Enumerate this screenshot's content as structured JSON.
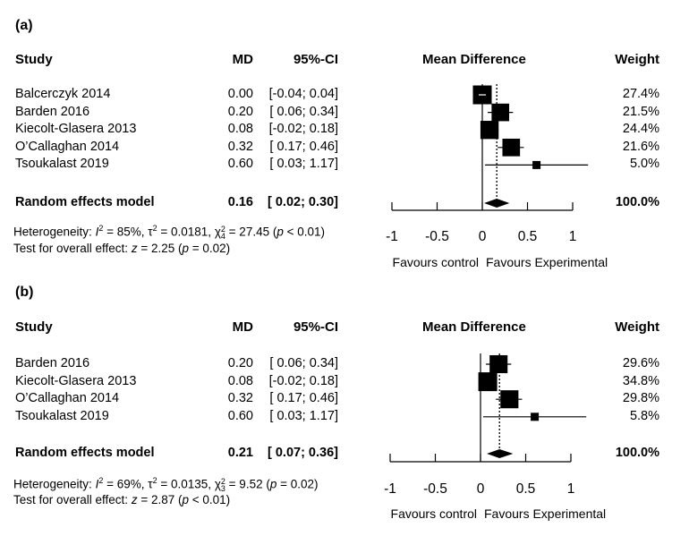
{
  "chart_data": [
    {
      "type": "forest",
      "panel_label": "(a)",
      "headers": {
        "study": "Study",
        "md": "MD",
        "ci": "95%-CI",
        "plot": "Mean Difference",
        "weight": "Weight"
      },
      "studies": [
        {
          "name": "Balcerczyk 2014",
          "md": 0.0,
          "lo": -0.04,
          "hi": 0.04,
          "md_text": "0.00",
          "ci_text": "[-0.04; 0.04]",
          "weight": 27.4,
          "weight_text": "27.4%"
        },
        {
          "name": "Barden 2016",
          "md": 0.2,
          "lo": 0.06,
          "hi": 0.34,
          "md_text": "0.20",
          "ci_text": "[ 0.06; 0.34]",
          "weight": 21.5,
          "weight_text": "21.5%"
        },
        {
          "name": "Kiecolt-Glasera 2013",
          "md": 0.08,
          "lo": -0.02,
          "hi": 0.18,
          "md_text": "0.08",
          "ci_text": "[-0.02; 0.18]",
          "weight": 24.4,
          "weight_text": "24.4%"
        },
        {
          "name": "O’Callaghan 2014",
          "md": 0.32,
          "lo": 0.17,
          "hi": 0.46,
          "md_text": "0.32",
          "ci_text": "[ 0.17; 0.46]",
          "weight": 21.6,
          "weight_text": "21.6%"
        },
        {
          "name": "Tsoukalast 2019",
          "md": 0.6,
          "lo": 0.03,
          "hi": 1.17,
          "md_text": "0.60",
          "ci_text": "[ 0.03; 1.17]",
          "weight": 5.0,
          "weight_text": "5.0%"
        }
      ],
      "pooled": {
        "name": "Random effects model",
        "md": 0.16,
        "lo": 0.02,
        "hi": 0.3,
        "md_text": "0.16",
        "ci_text": "[ 0.02; 0.30]",
        "weight_text": "100.0%"
      },
      "heterogeneity": {
        "prefix": "Heterogeneity: ",
        "i2_label": "I",
        "i2_value": " = 85%, ",
        "tau_label": "τ",
        "tau_value": " = 0.0181, ",
        "chi_label": "χ",
        "chi_df": "4",
        "chi_value": " = 27.45 (",
        "p_label": "p",
        "p_value": " < 0.01)"
      },
      "overall": {
        "prefix": "Test for overall effect: ",
        "z_label": "z",
        "z_value": " = 2.25 (",
        "p_label": "p",
        "p_value": " = 0.02)"
      },
      "x_ticks": [
        -1,
        -0.5,
        0,
        0.5,
        1
      ],
      "x_tick_labels": [
        "-1",
        "-0.5",
        "0",
        "0.5",
        "1"
      ],
      "xlim": [
        -1,
        1
      ],
      "xlabel_left": "Favours control",
      "xlabel_right": "Favours Experimental"
    },
    {
      "type": "forest",
      "panel_label": "(b)",
      "headers": {
        "study": "Study",
        "md": "MD",
        "ci": "95%-CI",
        "plot": "Mean Difference",
        "weight": "Weight"
      },
      "studies": [
        {
          "name": "Barden 2016",
          "md": 0.2,
          "lo": 0.06,
          "hi": 0.34,
          "md_text": "0.20",
          "ci_text": "[ 0.06; 0.34]",
          "weight": 29.6,
          "weight_text": "29.6%"
        },
        {
          "name": "Kiecolt-Glasera 2013",
          "md": 0.08,
          "lo": -0.02,
          "hi": 0.18,
          "md_text": "0.08",
          "ci_text": "[-0.02; 0.18]",
          "weight": 34.8,
          "weight_text": "34.8%"
        },
        {
          "name": "O’Callaghan 2014",
          "md": 0.32,
          "lo": 0.17,
          "hi": 0.46,
          "md_text": "0.32",
          "ci_text": "[ 0.17; 0.46]",
          "weight": 29.8,
          "weight_text": "29.8%"
        },
        {
          "name": "Tsoukalast 2019",
          "md": 0.6,
          "lo": 0.03,
          "hi": 1.17,
          "md_text": "0.60",
          "ci_text": "[ 0.03; 1.17]",
          "weight": 5.8,
          "weight_text": "5.8%"
        }
      ],
      "pooled": {
        "name": "Random effects model",
        "md": 0.21,
        "lo": 0.07,
        "hi": 0.36,
        "md_text": "0.21",
        "ci_text": "[ 0.07; 0.36]",
        "weight_text": "100.0%"
      },
      "heterogeneity": {
        "prefix": "Heterogeneity: ",
        "i2_label": "I",
        "i2_value": " = 69%, ",
        "tau_label": "τ",
        "tau_value": " = 0.0135, ",
        "chi_label": "χ",
        "chi_df": "3",
        "chi_value": " = 9.52 (",
        "p_label": "p",
        "p_value": " = 0.02)"
      },
      "overall": {
        "prefix": "Test for overall effect: ",
        "z_label": "z",
        "z_value": " = 2.87 (",
        "p_label": "p",
        "p_value": " < 0.01)"
      },
      "x_ticks": [
        -1,
        -0.5,
        0,
        0.5,
        1
      ],
      "x_tick_labels": [
        "-1",
        "-0.5",
        "0",
        "0.5",
        "1"
      ],
      "xlim": [
        -1,
        1
      ],
      "xlabel_left": "Favours control",
      "xlabel_right": "Favours Experimental"
    }
  ]
}
